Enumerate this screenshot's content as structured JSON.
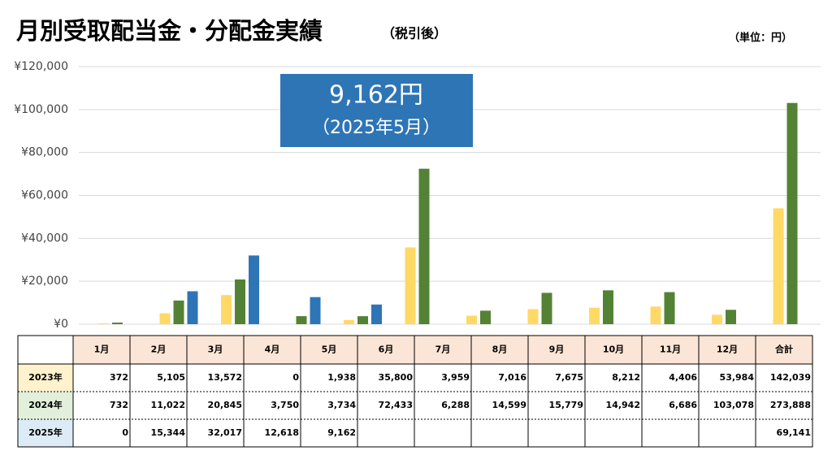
{
  "chart_data": {
    "type": "bar",
    "title": "月別受取配当金・分配金実績",
    "subtitle": "（税引後）",
    "unit_note": "（単位：円）",
    "annotation": [
      "9,162円",
      "（2025年5月）"
    ],
    "categories": [
      "1月",
      "2月",
      "3月",
      "4月",
      "5月",
      "6月",
      "7月",
      "8月",
      "9月",
      "10月",
      "11月",
      "12月"
    ],
    "total_header": "合計",
    "series": [
      {
        "name": "2023年",
        "color": "#ffd966",
        "row_color": "#fff2cc",
        "values": [
          372,
          5105,
          13572,
          0,
          1938,
          35800,
          3959,
          7016,
          7675,
          8212,
          4406,
          53984
        ],
        "value_labels": [
          "372",
          "5,105",
          "13,572",
          "0",
          "1,938",
          "35,800",
          "3,959",
          "7,016",
          "7,675",
          "8,212",
          "4,406",
          "53,984"
        ],
        "total": 142039,
        "total_label": "142,039"
      },
      {
        "name": "2024年",
        "color": "#548235",
        "row_color": "#e2efda",
        "values": [
          732,
          11022,
          20845,
          3750,
          3734,
          72433,
          6288,
          14599,
          15779,
          14942,
          6686,
          103078
        ],
        "value_labels": [
          "732",
          "11,022",
          "20,845",
          "3,750",
          "3,734",
          "72,433",
          "6,288",
          "14,599",
          "15,779",
          "14,942",
          "6,686",
          "103,078"
        ],
        "total": 273888,
        "total_label": "273,888"
      },
      {
        "name": "2025年",
        "color": "#2e75b6",
        "row_color": "#ddebf7",
        "values": [
          0,
          15344,
          32017,
          12618,
          9162,
          null,
          null,
          null,
          null,
          null,
          null,
          null
        ],
        "value_labels": [
          "0",
          "15,344",
          "32,017",
          "12,618",
          "9,162",
          null,
          null,
          null,
          null,
          null,
          null,
          null
        ],
        "total": 69141,
        "total_label": "69,141"
      }
    ],
    "ylim": [
      0,
      120000
    ],
    "yticks": [
      {
        "value": 0,
        "label": "¥0"
      },
      {
        "value": 20000,
        "label": "¥20,000"
      },
      {
        "value": 40000,
        "label": "¥40,000"
      },
      {
        "value": 60000,
        "label": "¥60,000"
      },
      {
        "value": 80000,
        "label": "¥80,000"
      },
      {
        "value": 100000,
        "label": "¥100,000"
      },
      {
        "value": 120000,
        "label": "¥120,000"
      }
    ],
    "grid": true,
    "header_color": "#fbe5d6"
  }
}
